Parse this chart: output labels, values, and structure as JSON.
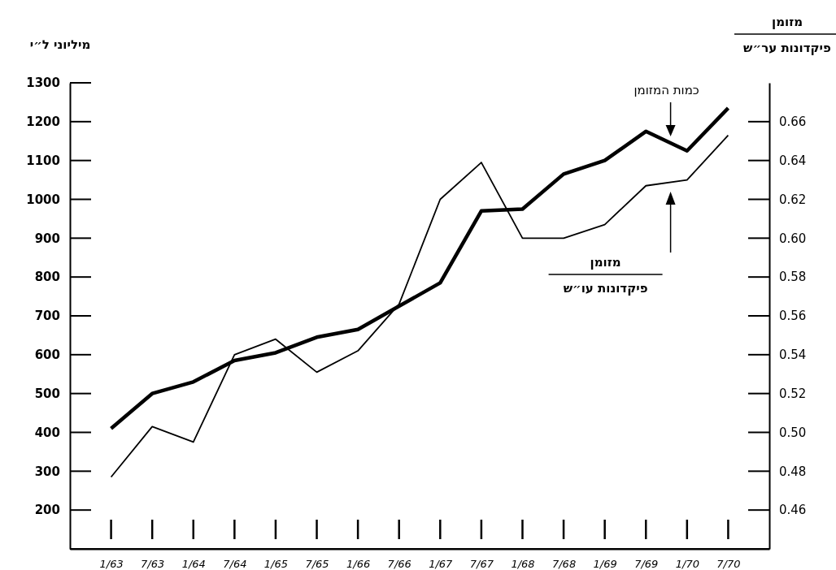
{
  "chart_data": {
    "type": "line",
    "ylabel": "מיליוני ל״י",
    "categories": [
      "1/63",
      "7/63",
      "1/64",
      "7/64",
      "1/65",
      "7/65",
      "1/66",
      "7/66",
      "1/67",
      "7/67",
      "1/68",
      "7/68",
      "1/69",
      "7/69",
      "1/70",
      "7/70"
    ],
    "series": [
      {
        "name": "כמות המזומן",
        "color": "#000000",
        "values": [
          410,
          500,
          530,
          585,
          605,
          645,
          665,
          725,
          785,
          970,
          975,
          1065,
          1100,
          1175,
          1125,
          1235
        ]
      },
      {
        "color": "#000000",
        "axis": "y2",
        "values": [
          0.477,
          0.503,
          0.495,
          0.54,
          0.548,
          0.531,
          0.542,
          0.566,
          0.62,
          0.639,
          0.6,
          0.6,
          0.607,
          0.627,
          0.63,
          0.653
        ]
      }
    ],
    "annotations": [
      "מזומן",
      "פיקדונות ער״ש",
      "מזומן",
      "פיקדונות עו״ש"
    ],
    "ylim": [
      100,
      1300
    ],
    "yticks": [
      200,
      300,
      400,
      500,
      600,
      700,
      800,
      900,
      1000,
      1100,
      1200,
      1300
    ],
    "y2lim": [
      0.44,
      0.68
    ],
    "y2ticks": [
      {
        "value": 0.46,
        "label": "0.46"
      },
      {
        "value": 0.48,
        "label": "0.48"
      },
      {
        "value": 0.5,
        "label": "0.50"
      },
      {
        "value": 0.52,
        "label": "0.52"
      },
      {
        "value": 0.54,
        "label": "0.54"
      },
      {
        "value": 0.56,
        "label": "0.56"
      },
      {
        "value": 0.58,
        "label": "0.58"
      },
      {
        "value": 0.6,
        "label": "0.60"
      },
      {
        "value": 0.62,
        "label": "0.62"
      },
      {
        "value": 0.64,
        "label": "0.64"
      },
      {
        "value": 0.66,
        "label": "0.66"
      }
    ],
    "grid": false,
    "legend": false,
    "line_style": "solid"
  }
}
